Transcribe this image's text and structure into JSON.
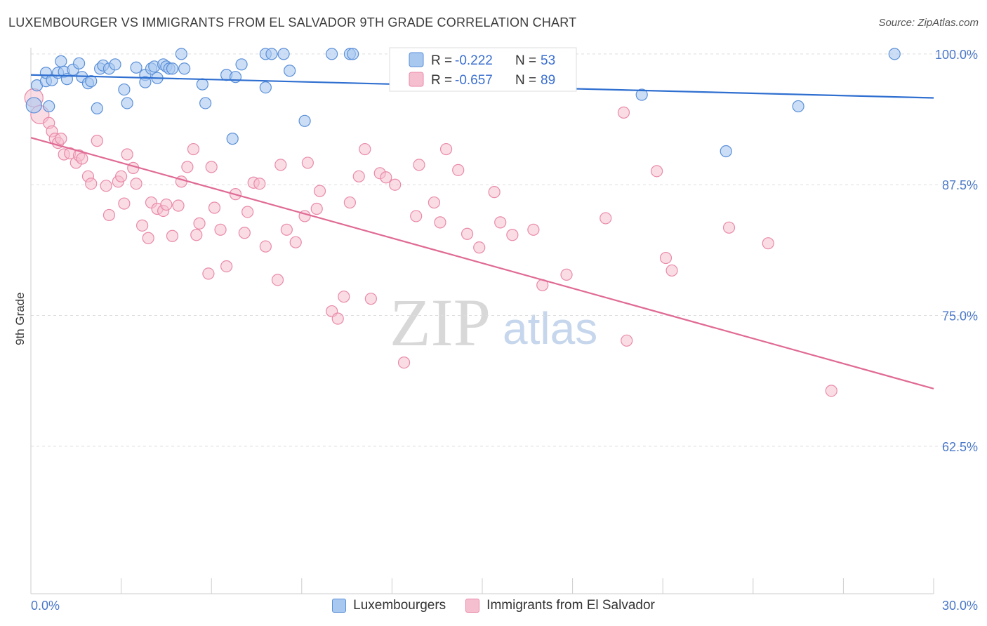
{
  "title": "LUXEMBOURGER VS IMMIGRANTS FROM EL SALVADOR 9TH GRADE CORRELATION CHART",
  "source": "Source: ZipAtlas.com",
  "watermark": {
    "zip": "ZIP",
    "atlas": "atlas"
  },
  "legend": {
    "rows": [
      {
        "r_label": "R =",
        "r_value": "-0.222",
        "n_label": "N =",
        "n_value": "53"
      },
      {
        "r_label": "R =",
        "r_value": "-0.657",
        "n_label": "N =",
        "n_value": "89"
      }
    ]
  },
  "bottom_legend": [
    "Luxembourgers",
    "Immigrants from El Salvador"
  ],
  "colors": {
    "blue_fill": "#a9c8f0",
    "blue_stroke": "#5a8fd8",
    "blue_line": "#2f6fd0",
    "pink_fill": "#f6bfd0",
    "pink_stroke": "#e98aa8",
    "pink_line": "#e06a94",
    "tick_text": "#4a78c8"
  },
  "chart_data": {
    "type": "scatter",
    "title": "LUXEMBOURGER VS IMMIGRANTS FROM EL SALVADOR 9TH GRADE CORRELATION CHART",
    "xlabel": "",
    "ylabel": "9th Grade",
    "xlim": [
      0,
      30
    ],
    "ylim": [
      48.4,
      101.0
    ],
    "x_tick_labels": [
      "0.0%",
      "30.0%"
    ],
    "y_ticks": [
      100.0,
      87.5,
      75.0,
      62.5
    ],
    "y_tick_labels": [
      "100.0%",
      "87.5%",
      "75.0%",
      "62.5%"
    ],
    "grid": true,
    "legend_position": "top-center",
    "series": [
      {
        "name": "Luxembourgers",
        "r": -0.222,
        "n": 53,
        "trend": {
          "x": [
            0,
            30
          ],
          "y": [
            98.0,
            95.8
          ]
        },
        "x": [
          0.1,
          0.2,
          0.5,
          0.5,
          0.6,
          0.7,
          0.9,
          1.0,
          1.1,
          1.2,
          1.4,
          1.6,
          1.7,
          1.9,
          2.0,
          2.2,
          2.3,
          2.4,
          2.6,
          2.8,
          3.1,
          3.2,
          3.5,
          3.8,
          3.8,
          4.0,
          4.1,
          4.2,
          4.4,
          4.5,
          4.6,
          4.7,
          5.0,
          5.1,
          5.7,
          5.8,
          6.5,
          6.7,
          6.8,
          7.0,
          7.8,
          7.8,
          8.0,
          8.4,
          8.6,
          9.1,
          10.0,
          10.6,
          10.7,
          20.3,
          23.1,
          25.5,
          28.7
        ],
        "y": [
          95.1,
          97.0,
          97.4,
          98.2,
          95.0,
          97.5,
          98.2,
          99.3,
          98.3,
          97.6,
          98.5,
          99.1,
          97.8,
          97.2,
          97.4,
          94.8,
          98.6,
          98.9,
          98.6,
          99.0,
          96.6,
          95.3,
          98.7,
          98.0,
          97.3,
          98.6,
          98.8,
          97.7,
          99.0,
          98.8,
          98.6,
          98.6,
          100.0,
          98.6,
          97.1,
          95.3,
          98.0,
          91.9,
          97.8,
          99.0,
          100.0,
          96.8,
          100.0,
          100.0,
          98.4,
          93.6,
          100.0,
          100.0,
          100.0,
          96.1,
          90.7,
          95.0,
          100.0
        ]
      },
      {
        "name": "Immigrants from El Salvador",
        "r": -0.657,
        "n": 89,
        "trend": {
          "x": [
            0,
            30
          ],
          "y": [
            92.0,
            68.0
          ]
        },
        "x": [
          0.1,
          0.3,
          0.6,
          0.7,
          0.8,
          0.9,
          1.0,
          1.1,
          1.3,
          1.5,
          1.6,
          1.7,
          1.9,
          2.0,
          2.2,
          2.5,
          2.6,
          2.9,
          3.0,
          3.1,
          3.2,
          3.4,
          3.5,
          3.7,
          3.9,
          4.0,
          4.2,
          4.4,
          4.5,
          4.7,
          4.9,
          5.0,
          5.2,
          5.4,
          5.5,
          5.6,
          5.9,
          6.0,
          6.1,
          6.3,
          6.5,
          6.8,
          7.1,
          7.2,
          7.4,
          7.6,
          7.8,
          8.2,
          8.3,
          8.5,
          8.8,
          9.1,
          9.2,
          9.5,
          9.6,
          10.0,
          10.2,
          10.4,
          10.6,
          10.9,
          11.1,
          11.3,
          11.6,
          11.8,
          12.1,
          12.4,
          12.8,
          12.9,
          13.4,
          13.6,
          13.8,
          14.2,
          14.5,
          14.9,
          15.4,
          15.6,
          16.0,
          16.7,
          17.0,
          17.8,
          19.1,
          19.7,
          19.8,
          20.8,
          21.1,
          21.3,
          23.2,
          24.5,
          26.6
        ],
        "y": [
          95.8,
          94.2,
          93.4,
          92.6,
          91.9,
          91.5,
          91.9,
          90.4,
          90.5,
          89.6,
          90.3,
          90.0,
          88.3,
          87.6,
          91.7,
          87.4,
          84.6,
          87.8,
          88.3,
          85.7,
          90.4,
          89.1,
          87.6,
          83.6,
          82.4,
          85.8,
          85.2,
          85.0,
          85.6,
          82.6,
          85.5,
          87.8,
          89.2,
          90.9,
          82.7,
          83.8,
          79.0,
          89.2,
          85.3,
          83.2,
          79.7,
          86.6,
          82.9,
          84.9,
          87.7,
          87.6,
          81.6,
          78.4,
          89.4,
          83.2,
          82.0,
          84.5,
          89.6,
          85.2,
          86.9,
          75.4,
          74.7,
          76.8,
          85.8,
          88.3,
          90.9,
          76.6,
          88.6,
          88.2,
          87.5,
          70.5,
          84.5,
          89.4,
          85.8,
          83.9,
          90.9,
          88.9,
          82.8,
          81.5,
          86.8,
          83.9,
          82.7,
          83.2,
          77.9,
          78.9,
          84.3,
          94.4,
          72.6,
          88.8,
          80.5,
          79.3,
          83.4,
          81.9,
          67.8
        ]
      }
    ]
  }
}
